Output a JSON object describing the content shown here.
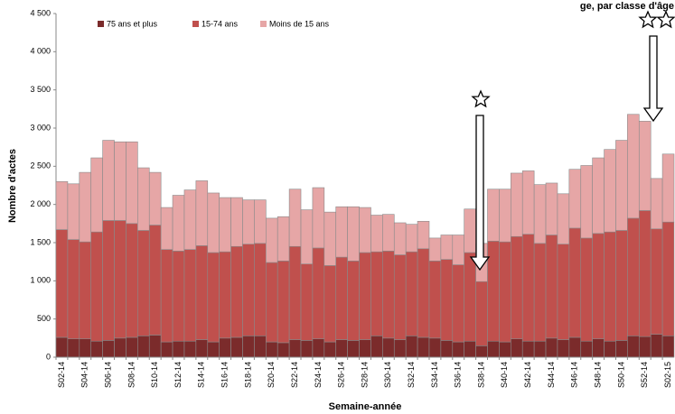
{
  "chart_data": {
    "type": "stacked_bar",
    "title": "ge, par classe d'âge",
    "x_label": "Semaine-année",
    "y_label": "Nombre d'actes",
    "categories": [
      "S02-14",
      null,
      "S04-14",
      null,
      "S06-14",
      null,
      "S08-14",
      null,
      "S10-14",
      null,
      "S12-14",
      null,
      "S14-14",
      null,
      "S16-14",
      null,
      "S18-14",
      null,
      "S20-14",
      null,
      "S22-14",
      null,
      "S24-14",
      null,
      "S26-14",
      null,
      "S28-14",
      null,
      "S30-14",
      null,
      "S32-14",
      null,
      "S34-14",
      null,
      "S36-14",
      null,
      "S38-14",
      null,
      "S40-14",
      null,
      "S42-14",
      null,
      "S44-14",
      null,
      "S46-14",
      null,
      "S48-14",
      null,
      "S50-14",
      null,
      "S52-14",
      null,
      "S02-15"
    ],
    "series": [
      {
        "name": "75 ans et plus",
        "color": "#7b2b2b",
        "values": [
          260,
          240,
          240,
          210,
          220,
          250,
          260,
          280,
          290,
          200,
          210,
          210,
          230,
          200,
          250,
          260,
          280,
          280,
          200,
          190,
          230,
          220,
          240,
          200,
          230,
          220,
          230,
          280,
          250,
          230,
          280,
          260,
          250,
          220,
          200,
          210,
          150,
          210,
          200,
          240,
          210,
          210,
          250,
          230,
          260,
          210,
          240,
          210,
          220,
          280,
          270,
          300,
          280
        ]
      },
      {
        "name": "15-74 ans",
        "color": "#c0504d",
        "values": [
          1410,
          1300,
          1270,
          1430,
          1570,
          1540,
          1490,
          1380,
          1440,
          1210,
          1180,
          1200,
          1230,
          1170,
          1130,
          1190,
          1200,
          1210,
          1040,
          1070,
          1220,
          1000,
          1190,
          1000,
          1080,
          1040,
          1140,
          1100,
          1140,
          1110,
          1100,
          1160,
          1010,
          1060,
          1010,
          1160,
          840,
          1310,
          1310,
          1340,
          1400,
          1280,
          1350,
          1250,
          1430,
          1350,
          1380,
          1430,
          1440,
          1540,
          1650,
          1380,
          1490
        ]
      },
      {
        "name": "Moins de 15 ans",
        "color": "#e6a6a6",
        "values": [
          630,
          730,
          910,
          970,
          1050,
          1030,
          1070,
          820,
          690,
          550,
          730,
          780,
          850,
          780,
          710,
          640,
          580,
          570,
          580,
          580,
          750,
          710,
          790,
          700,
          660,
          710,
          590,
          480,
          480,
          420,
          360,
          360,
          300,
          320,
          390,
          570,
          500,
          680,
          690,
          830,
          830,
          770,
          680,
          660,
          770,
          950,
          990,
          1080,
          1180,
          1360,
          1170,
          660,
          890
        ]
      }
    ],
    "ylim": [
      0,
      4500
    ],
    "yticks": [
      0,
      500,
      {
        "value": 1000,
        "label": "1 000"
      },
      {
        "value": 1500,
        "label": "1 500"
      },
      {
        "value": 2000,
        "label": "2 000"
      },
      {
        "value": 2500,
        "label": "2 500"
      },
      {
        "value": 3000,
        "label": "3 000"
      },
      {
        "value": 3500,
        "label": "3 500"
      },
      {
        "value": 4000,
        "label": "4 000"
      },
      {
        "value": 4500,
        "label": "4 500"
      }
    ],
    "grid": false
  }
}
